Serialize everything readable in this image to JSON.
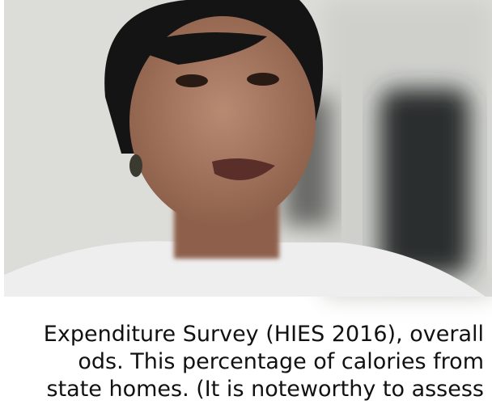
{
  "document": {
    "lines": [
      "Expenditure Survey (HIES 2016), overall",
      "ods. This percentage of calories from",
      "state homes. (It is noteworthy to assess"
    ]
  }
}
